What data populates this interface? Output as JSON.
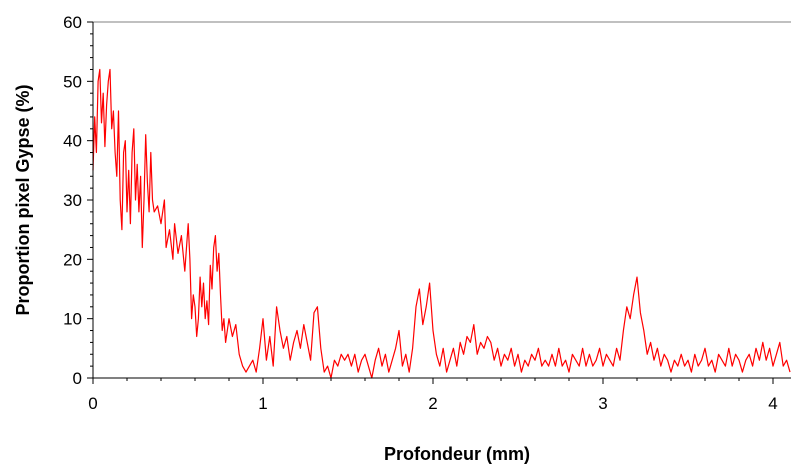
{
  "chart_data": {
    "type": "line",
    "title": "",
    "xlabel": "Profondeur (mm)",
    "ylabel": "Proportion pixel Gypse (%)",
    "xlim": [
      0,
      4.1
    ],
    "ylim": [
      0,
      60
    ],
    "x_ticks": [
      0,
      1,
      2,
      3,
      4
    ],
    "y_ticks": [
      0,
      10,
      20,
      30,
      40,
      50,
      60
    ],
    "grid": "horizontal line at y=60 only",
    "legend": "none",
    "series": [
      {
        "color": "#ff0000",
        "points": [
          [
            0.0,
            35
          ],
          [
            0.01,
            44
          ],
          [
            0.02,
            38
          ],
          [
            0.03,
            50
          ],
          [
            0.04,
            52
          ],
          [
            0.05,
            43
          ],
          [
            0.06,
            48
          ],
          [
            0.07,
            39
          ],
          [
            0.08,
            46
          ],
          [
            0.09,
            50
          ],
          [
            0.1,
            52
          ],
          [
            0.11,
            42
          ],
          [
            0.12,
            45
          ],
          [
            0.13,
            38
          ],
          [
            0.14,
            34
          ],
          [
            0.15,
            45
          ],
          [
            0.16,
            30
          ],
          [
            0.17,
            25
          ],
          [
            0.18,
            38
          ],
          [
            0.19,
            40
          ],
          [
            0.2,
            28
          ],
          [
            0.21,
            35
          ],
          [
            0.22,
            26
          ],
          [
            0.23,
            38
          ],
          [
            0.24,
            42
          ],
          [
            0.25,
            30
          ],
          [
            0.26,
            36
          ],
          [
            0.27,
            28
          ],
          [
            0.28,
            34
          ],
          [
            0.29,
            22
          ],
          [
            0.3,
            30
          ],
          [
            0.31,
            41
          ],
          [
            0.32,
            33
          ],
          [
            0.33,
            28
          ],
          [
            0.34,
            38
          ],
          [
            0.35,
            30
          ],
          [
            0.36,
            28
          ],
          [
            0.38,
            29
          ],
          [
            0.4,
            26
          ],
          [
            0.42,
            30
          ],
          [
            0.43,
            22
          ],
          [
            0.45,
            25
          ],
          [
            0.47,
            20
          ],
          [
            0.48,
            26
          ],
          [
            0.5,
            21
          ],
          [
            0.52,
            24
          ],
          [
            0.54,
            18
          ],
          [
            0.56,
            26
          ],
          [
            0.57,
            20
          ],
          [
            0.58,
            10
          ],
          [
            0.59,
            14
          ],
          [
            0.6,
            12
          ],
          [
            0.61,
            7
          ],
          [
            0.62,
            10
          ],
          [
            0.63,
            17
          ],
          [
            0.64,
            12
          ],
          [
            0.65,
            16
          ],
          [
            0.66,
            10
          ],
          [
            0.67,
            13
          ],
          [
            0.68,
            9
          ],
          [
            0.69,
            19
          ],
          [
            0.7,
            15
          ],
          [
            0.71,
            22
          ],
          [
            0.72,
            24
          ],
          [
            0.73,
            18
          ],
          [
            0.74,
            21
          ],
          [
            0.75,
            14
          ],
          [
            0.76,
            8
          ],
          [
            0.77,
            10
          ],
          [
            0.78,
            6
          ],
          [
            0.8,
            10
          ],
          [
            0.82,
            7
          ],
          [
            0.84,
            9
          ],
          [
            0.86,
            4
          ],
          [
            0.88,
            2
          ],
          [
            0.9,
            1
          ],
          [
            0.92,
            2
          ],
          [
            0.94,
            3
          ],
          [
            0.96,
            1
          ],
          [
            0.98,
            5
          ],
          [
            1.0,
            10
          ],
          [
            1.02,
            3
          ],
          [
            1.04,
            7
          ],
          [
            1.06,
            2
          ],
          [
            1.08,
            12
          ],
          [
            1.1,
            8
          ],
          [
            1.12,
            5
          ],
          [
            1.14,
            7
          ],
          [
            1.16,
            3
          ],
          [
            1.18,
            6
          ],
          [
            1.2,
            8
          ],
          [
            1.22,
            5
          ],
          [
            1.24,
            9
          ],
          [
            1.26,
            6
          ],
          [
            1.28,
            3
          ],
          [
            1.3,
            11
          ],
          [
            1.32,
            12
          ],
          [
            1.34,
            5
          ],
          [
            1.36,
            1
          ],
          [
            1.38,
            2
          ],
          [
            1.4,
            0
          ],
          [
            1.42,
            3
          ],
          [
            1.44,
            2
          ],
          [
            1.46,
            4
          ],
          [
            1.48,
            3
          ],
          [
            1.5,
            4
          ],
          [
            1.52,
            2
          ],
          [
            1.54,
            4
          ],
          [
            1.56,
            1
          ],
          [
            1.58,
            3
          ],
          [
            1.6,
            4
          ],
          [
            1.62,
            2
          ],
          [
            1.64,
            0
          ],
          [
            1.66,
            3
          ],
          [
            1.68,
            5
          ],
          [
            1.7,
            2
          ],
          [
            1.72,
            4
          ],
          [
            1.74,
            1
          ],
          [
            1.76,
            3
          ],
          [
            1.78,
            5
          ],
          [
            1.8,
            8
          ],
          [
            1.82,
            2
          ],
          [
            1.84,
            4
          ],
          [
            1.86,
            1
          ],
          [
            1.88,
            5
          ],
          [
            1.9,
            12
          ],
          [
            1.92,
            15
          ],
          [
            1.94,
            9
          ],
          [
            1.96,
            12
          ],
          [
            1.98,
            16
          ],
          [
            2.0,
            8
          ],
          [
            2.02,
            4
          ],
          [
            2.04,
            2
          ],
          [
            2.06,
            5
          ],
          [
            2.08,
            1
          ],
          [
            2.1,
            3
          ],
          [
            2.12,
            5
          ],
          [
            2.14,
            2
          ],
          [
            2.16,
            6
          ],
          [
            2.18,
            4
          ],
          [
            2.2,
            7
          ],
          [
            2.22,
            6
          ],
          [
            2.24,
            9
          ],
          [
            2.26,
            4
          ],
          [
            2.28,
            6
          ],
          [
            2.3,
            5
          ],
          [
            2.32,
            7
          ],
          [
            2.34,
            6
          ],
          [
            2.36,
            3
          ],
          [
            2.38,
            5
          ],
          [
            2.4,
            2
          ],
          [
            2.42,
            4
          ],
          [
            2.44,
            3
          ],
          [
            2.46,
            5
          ],
          [
            2.48,
            2
          ],
          [
            2.5,
            4
          ],
          [
            2.52,
            1
          ],
          [
            2.54,
            3
          ],
          [
            2.56,
            2
          ],
          [
            2.58,
            4
          ],
          [
            2.6,
            3
          ],
          [
            2.62,
            5
          ],
          [
            2.64,
            2
          ],
          [
            2.66,
            3
          ],
          [
            2.68,
            2
          ],
          [
            2.7,
            4
          ],
          [
            2.72,
            2
          ],
          [
            2.74,
            5
          ],
          [
            2.76,
            2
          ],
          [
            2.78,
            3
          ],
          [
            2.8,
            1
          ],
          [
            2.82,
            4
          ],
          [
            2.84,
            3
          ],
          [
            2.86,
            2
          ],
          [
            2.88,
            5
          ],
          [
            2.9,
            2
          ],
          [
            2.92,
            4
          ],
          [
            2.94,
            2
          ],
          [
            2.96,
            3
          ],
          [
            2.98,
            5
          ],
          [
            3.0,
            2
          ],
          [
            3.02,
            4
          ],
          [
            3.04,
            3
          ],
          [
            3.06,
            2
          ],
          [
            3.08,
            5
          ],
          [
            3.1,
            3
          ],
          [
            3.12,
            8
          ],
          [
            3.14,
            12
          ],
          [
            3.16,
            10
          ],
          [
            3.18,
            14
          ],
          [
            3.2,
            17
          ],
          [
            3.22,
            11
          ],
          [
            3.24,
            8
          ],
          [
            3.26,
            4
          ],
          [
            3.28,
            6
          ],
          [
            3.3,
            3
          ],
          [
            3.32,
            5
          ],
          [
            3.34,
            2
          ],
          [
            3.36,
            4
          ],
          [
            3.38,
            3
          ],
          [
            3.4,
            1
          ],
          [
            3.42,
            3
          ],
          [
            3.44,
            2
          ],
          [
            3.46,
            4
          ],
          [
            3.48,
            2
          ],
          [
            3.5,
            3
          ],
          [
            3.52,
            1
          ],
          [
            3.54,
            4
          ],
          [
            3.56,
            2
          ],
          [
            3.58,
            3
          ],
          [
            3.6,
            5
          ],
          [
            3.62,
            2
          ],
          [
            3.64,
            3
          ],
          [
            3.66,
            1
          ],
          [
            3.68,
            4
          ],
          [
            3.7,
            3
          ],
          [
            3.72,
            2
          ],
          [
            3.74,
            5
          ],
          [
            3.76,
            2
          ],
          [
            3.78,
            4
          ],
          [
            3.8,
            3
          ],
          [
            3.82,
            1
          ],
          [
            3.84,
            3
          ],
          [
            3.86,
            4
          ],
          [
            3.88,
            2
          ],
          [
            3.9,
            5
          ],
          [
            3.92,
            3
          ],
          [
            3.94,
            6
          ],
          [
            3.96,
            3
          ],
          [
            3.98,
            5
          ],
          [
            4.0,
            2
          ],
          [
            4.02,
            4
          ],
          [
            4.04,
            6
          ],
          [
            4.06,
            2
          ],
          [
            4.08,
            3
          ],
          [
            4.1,
            1
          ]
        ]
      }
    ]
  }
}
